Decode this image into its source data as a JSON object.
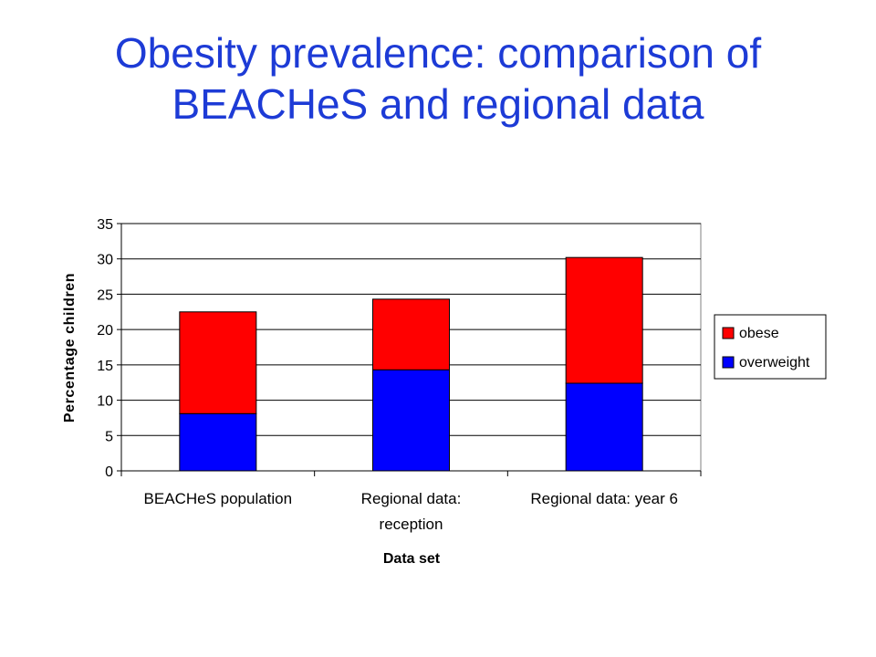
{
  "slide": {
    "title_line1": "Obesity prevalence: comparison of",
    "title_line2": "BEACHeS and regional data",
    "title_color": "#1d3bd6"
  },
  "chart_data": {
    "type": "bar",
    "stacked": true,
    "categories": [
      [
        "BEACHeS population"
      ],
      [
        "Regional data:",
        "reception"
      ],
      [
        "Regional data: year 6"
      ]
    ],
    "series": [
      {
        "name": "overweight",
        "values": [
          8.1,
          14.3,
          12.4
        ],
        "color": "#0000ff"
      },
      {
        "name": "obese",
        "values": [
          14.4,
          10.0,
          17.8
        ],
        "color": "#ff0000"
      }
    ],
    "legend_order": [
      "obese",
      "overweight"
    ],
    "xlabel": "Data set",
    "ylabel": "Percentage children",
    "ylim": [
      0,
      35
    ],
    "yticks": [
      0,
      5,
      10,
      15,
      20,
      25,
      30,
      35
    ],
    "grid": true,
    "legend_position": "right"
  }
}
